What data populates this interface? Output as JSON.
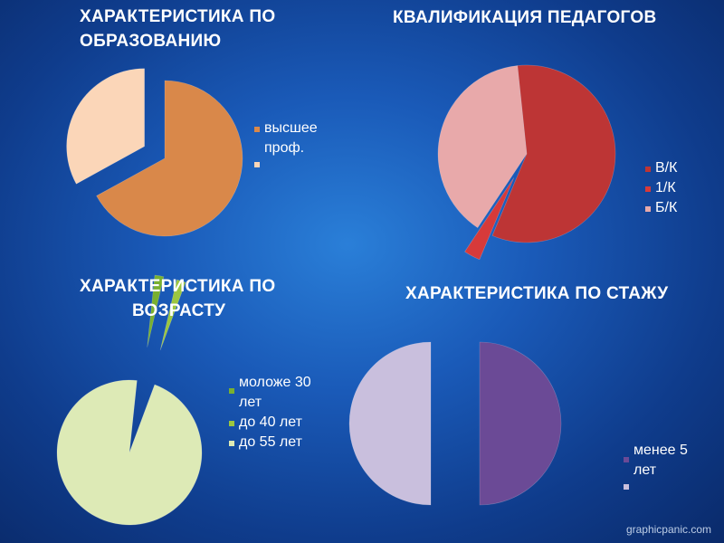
{
  "watermark": "graphicpanic.com",
  "chart_data": [
    {
      "type": "pie",
      "title": "ХАРАКТЕРИСТИКА ПО ОБРАЗОВАНИЮ",
      "title_lines": [
        "ХАРАКТЕРИСТИКА ПО",
        "ОБРАЗОВАНИЮ"
      ],
      "legend_placement": "right",
      "legend_lines": [
        [
          "высшее",
          "проф."
        ],
        [
          ""
        ]
      ],
      "slices": [
        {
          "label": "высшее проф.",
          "value": 67,
          "color": "#d9884a",
          "exploded": false
        },
        {
          "label": "",
          "value": 33,
          "color": "#fbd6b8",
          "exploded": true
        }
      ]
    },
    {
      "type": "pie",
      "title": "КВАЛИФИКАЦИЯ ПЕДАГОГОВ",
      "title_lines": [
        "КВАЛИФИКАЦИЯ ПЕДАГОГОВ"
      ],
      "legend_placement": "right",
      "legend_lines": [
        [
          "В/К"
        ],
        [
          "1/К"
        ],
        [
          "Б/К"
        ]
      ],
      "slices": [
        {
          "label": "В/К",
          "value": 58,
          "color": "#bd3535",
          "exploded": false
        },
        {
          "label": "1/К",
          "value": 3,
          "color": "#d73a3a",
          "exploded": true
        },
        {
          "label": "Б/К",
          "value": 39,
          "color": "#e8a9aa",
          "exploded": false
        }
      ]
    },
    {
      "type": "pie",
      "title": "ХАРАКТЕРИСТИКА ПО ВОЗРАСТУ",
      "title_lines": [
        "ХАРАКТЕРИСТИКА ПО",
        "ВОЗРАСТУ"
      ],
      "legend_placement": "right",
      "legend_lines": [
        [
          "моложе 30",
          "лет"
        ],
        [
          "до 40 лет"
        ],
        [
          "до 55 лет"
        ]
      ],
      "slices": [
        {
          "label": "моложе 30 лет",
          "value": 2,
          "color": "#79b030",
          "exploded": true
        },
        {
          "label": "до 40 лет",
          "value": 2,
          "color": "#9cc640",
          "exploded": true
        },
        {
          "label": "до 55 лет",
          "value": 96,
          "color": "#ddeab6",
          "exploded": false
        }
      ]
    },
    {
      "type": "pie",
      "title": "ХАРАКТЕРИСТИКА ПО СТАЖУ",
      "title_lines": [
        "ХАРАКТЕРИСТИКА ПО СТАЖУ"
      ],
      "legend_placement": "right",
      "legend_lines": [
        [
          "менее 5",
          "лет"
        ],
        [
          ""
        ]
      ],
      "slices": [
        {
          "label": "менее 5 лет",
          "value": 50,
          "color": "#6b4a96",
          "exploded": false
        },
        {
          "label": "",
          "value": 50,
          "color": "#c9bfdd",
          "exploded": true
        }
      ]
    }
  ]
}
